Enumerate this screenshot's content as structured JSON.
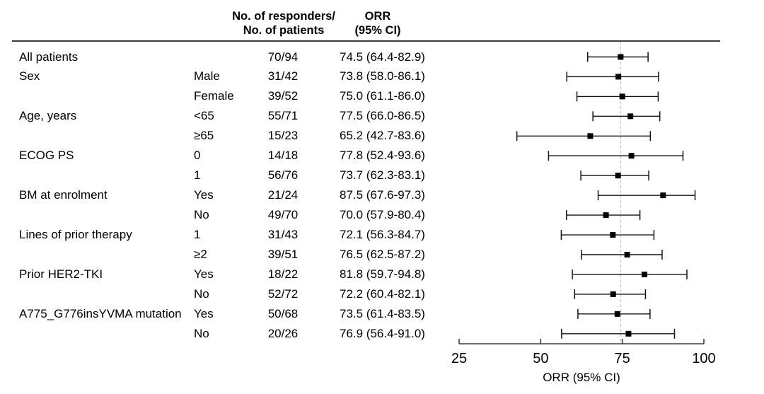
{
  "header": {
    "responders_line1": "No. of responders/",
    "responders_line2": "No. of patients",
    "orr_line1": "ORR",
    "orr_line2": "(95% CI)"
  },
  "axis": {
    "label": "ORR (95% CI)",
    "ticks": [
      25,
      50,
      75,
      100
    ],
    "min": 25,
    "max": 100
  },
  "reference_line_value": 74.5,
  "colors": {
    "text": "#000000",
    "marker": "#000000",
    "error_bar": "#141414",
    "axis": "#3d3d3d",
    "header_rule": "#3d3d3d",
    "reference_line": "#c9c9c9",
    "background": "#ffffff"
  },
  "chart_data": {
    "type": "forest",
    "xlabel": "ORR (95% CI)",
    "xlim": [
      25,
      100
    ],
    "reference_value": 74.5,
    "rows": [
      {
        "category": "All patients",
        "subgroup": "",
        "responders": "70/94",
        "orr_ci_text": "74.5 (64.4-82.9)",
        "orr": 74.5,
        "ci_low": 64.4,
        "ci_high": 82.9
      },
      {
        "category": "Sex",
        "subgroup": "Male",
        "responders": "31/42",
        "orr_ci_text": "73.8 (58.0-86.1)",
        "orr": 73.8,
        "ci_low": 58.0,
        "ci_high": 86.1
      },
      {
        "category": "",
        "subgroup": "Female",
        "responders": "39/52",
        "orr_ci_text": "75.0 (61.1-86.0)",
        "orr": 75.0,
        "ci_low": 61.1,
        "ci_high": 86.0
      },
      {
        "category": "Age, years",
        "subgroup": "<65",
        "responders": "55/71",
        "orr_ci_text": "77.5 (66.0-86.5)",
        "orr": 77.5,
        "ci_low": 66.0,
        "ci_high": 86.5
      },
      {
        "category": "",
        "subgroup": "≥65",
        "responders": "15/23",
        "orr_ci_text": "65.2 (42.7-83.6)",
        "orr": 65.2,
        "ci_low": 42.7,
        "ci_high": 83.6
      },
      {
        "category": "ECOG PS",
        "subgroup": "0",
        "responders": "14/18",
        "orr_ci_text": "77.8 (52.4-93.6)",
        "orr": 77.8,
        "ci_low": 52.4,
        "ci_high": 93.6
      },
      {
        "category": "",
        "subgroup": "1",
        "responders": "56/76",
        "orr_ci_text": "73.7 (62.3-83.1)",
        "orr": 73.7,
        "ci_low": 62.3,
        "ci_high": 83.1
      },
      {
        "category": "BM at enrolment",
        "subgroup": "Yes",
        "responders": "21/24",
        "orr_ci_text": "87.5 (67.6-97.3)",
        "orr": 87.5,
        "ci_low": 67.6,
        "ci_high": 97.3
      },
      {
        "category": "",
        "subgroup": "No",
        "responders": "49/70",
        "orr_ci_text": "70.0 (57.9-80.4)",
        "orr": 70.0,
        "ci_low": 57.9,
        "ci_high": 80.4
      },
      {
        "category": "Lines of prior therapy",
        "subgroup": "1",
        "responders": "31/43",
        "orr_ci_text": "72.1 (56.3-84.7)",
        "orr": 72.1,
        "ci_low": 56.3,
        "ci_high": 84.7
      },
      {
        "category": "",
        "subgroup": "≥2",
        "responders": "39/51",
        "orr_ci_text": "76.5 (62.5-87.2)",
        "orr": 76.5,
        "ci_low": 62.5,
        "ci_high": 87.2
      },
      {
        "category": "Prior HER2-TKI",
        "subgroup": "Yes",
        "responders": "18/22",
        "orr_ci_text": "81.8 (59.7-94.8)",
        "orr": 81.8,
        "ci_low": 59.7,
        "ci_high": 94.8
      },
      {
        "category": "",
        "subgroup": "No",
        "responders": "52/72",
        "orr_ci_text": "72.2 (60.4-82.1)",
        "orr": 72.2,
        "ci_low": 60.4,
        "ci_high": 82.1
      },
      {
        "category": "A775_G776insYVMA mutation",
        "subgroup": "Yes",
        "responders": "50/68",
        "orr_ci_text": "73.5 (61.4-83.5)",
        "orr": 73.5,
        "ci_low": 61.4,
        "ci_high": 83.5
      },
      {
        "category": "",
        "subgroup": "No",
        "responders": "20/26",
        "orr_ci_text": "76.9 (56.4-91.0)",
        "orr": 76.9,
        "ci_low": 56.4,
        "ci_high": 91.0
      }
    ]
  }
}
